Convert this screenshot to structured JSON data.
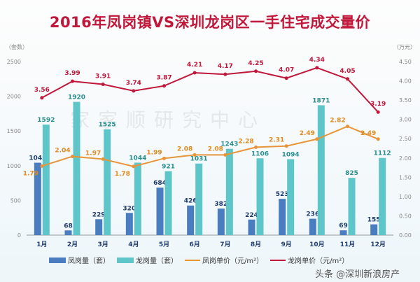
{
  "chart_data": {
    "type": "bar+line",
    "title": "2016年凤岗镇VS深圳龙岗区一手住宅成交量价",
    "ylabel_left": "（套数）",
    "ylabel_right": "（万元）",
    "ylim_left": [
      0,
      2500
    ],
    "ylim_right": [
      0,
      4.5
    ],
    "yticks_left": [
      "0",
      "500",
      "1000",
      "1500",
      "2000",
      "2500"
    ],
    "yticks_right": [
      "0.00",
      "0.50",
      "1.00",
      "1.50",
      "2.00",
      "2.50",
      "3.00",
      "3.50",
      "4.00",
      "4.50"
    ],
    "categories": [
      "1月",
      "2月",
      "3月",
      "4月",
      "5月",
      "6月",
      "7月",
      "8月",
      "9月",
      "10月",
      "11月",
      "12月"
    ],
    "series": [
      {
        "name": "凤岗量（套）",
        "kind": "bar",
        "axis": "left",
        "color": "#4a7cc0",
        "values": [
          1043,
          68,
          229,
          320,
          684,
          426,
          382,
          224,
          523,
          236,
          69,
          155
        ]
      },
      {
        "name": "龙岗量（套）",
        "kind": "bar",
        "axis": "left",
        "color": "#5ec6c9",
        "values": [
          1592,
          1920,
          1525,
          1044,
          921,
          1031,
          1243,
          1106,
          1094,
          1871,
          825,
          1112
        ]
      },
      {
        "name": "凤岗单价（元/m²）",
        "kind": "line",
        "axis": "right",
        "color": "#e8953a",
        "values": [
          1.79,
          2.04,
          1.97,
          1.78,
          1.99,
          2.08,
          2.08,
          2.28,
          2.31,
          2.49,
          2.82,
          2.49
        ]
      },
      {
        "name": "龙岗单价（元/m²）",
        "kind": "line",
        "axis": "right",
        "color": "#c0173a",
        "values": [
          3.56,
          3.99,
          3.91,
          3.74,
          3.87,
          4.21,
          4.17,
          4.25,
          4.07,
          4.34,
          4.05,
          3.19
        ]
      }
    ],
    "legend": "bottom",
    "grid": false
  },
  "watermark": "家家顺研究中心",
  "source_mark": "头条 @深圳新浪房产"
}
